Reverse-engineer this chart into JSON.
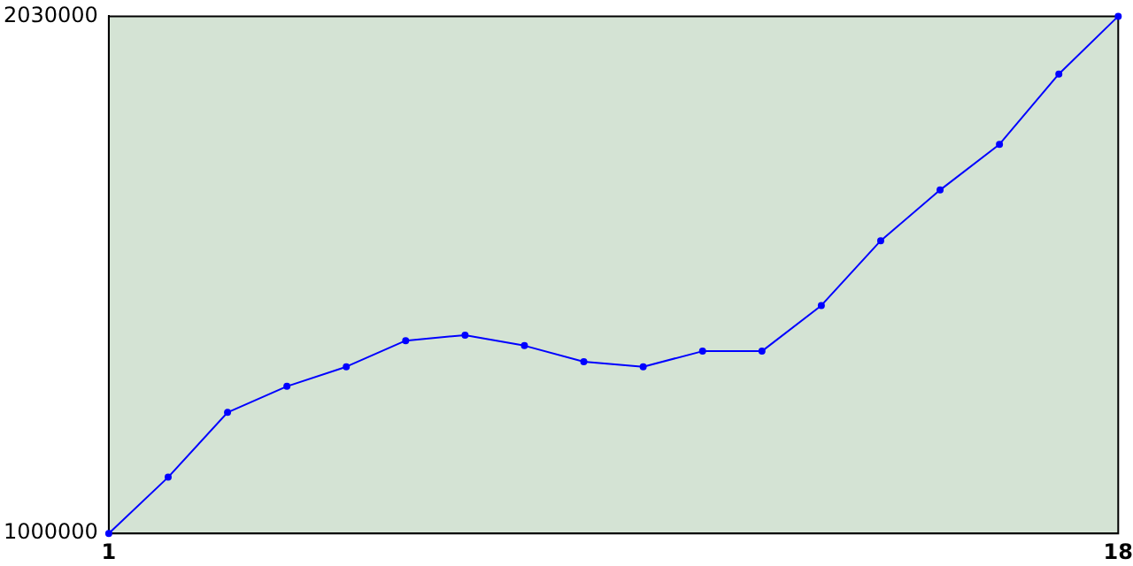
{
  "chart_data": {
    "type": "line",
    "x": [
      1,
      2,
      3,
      4,
      5,
      6,
      7,
      8,
      9,
      10,
      11,
      12,
      13,
      14,
      15,
      16,
      17,
      18
    ],
    "series": [
      {
        "color": "#0000ff",
        "values": [
          1000000,
          1112000,
          1241000,
          1293000,
          1332000,
          1384000,
          1395000,
          1374000,
          1342000,
          1332000,
          1363000,
          1363000,
          1454000,
          1583000,
          1684000,
          1775000,
          1915000,
          2030000
        ]
      }
    ],
    "xlim": [
      1,
      18
    ],
    "xticks": [
      1,
      18
    ],
    "ylim": [
      1000000,
      2030000
    ],
    "yticks": [
      1000000,
      2030000
    ],
    "grid": false,
    "legend": false,
    "marker": "circle",
    "line_style": "solid"
  }
}
